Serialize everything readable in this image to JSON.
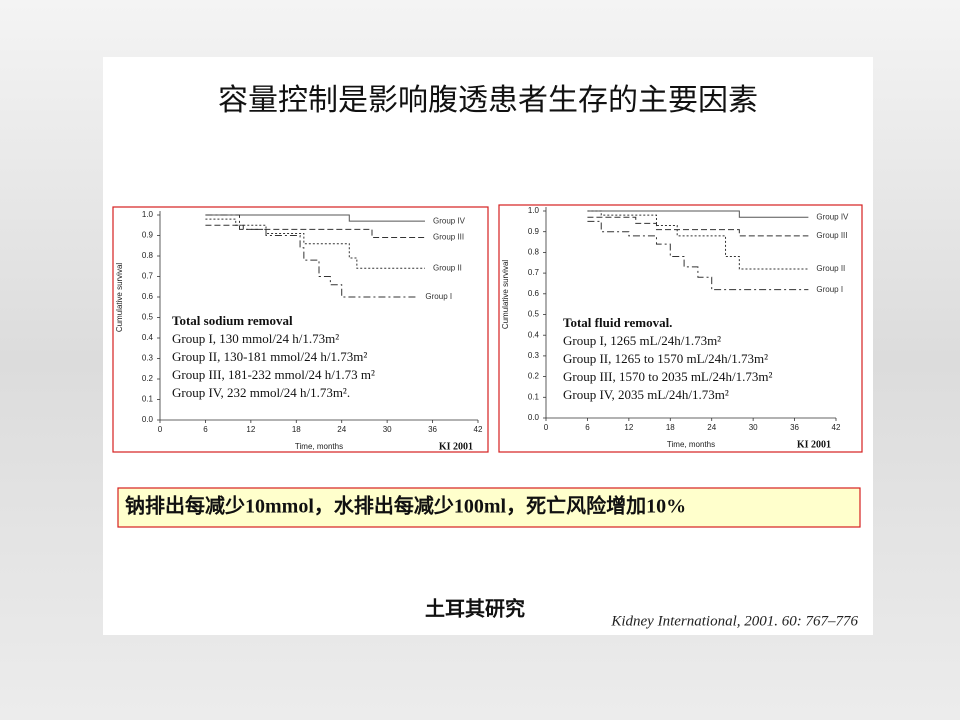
{
  "slide_title": "容量控制是影响腹透患者生存的主要因素",
  "chart_data": [
    {
      "type": "step",
      "ylabel": "Cumulative survival",
      "xlabel": "Time, months",
      "source_tag": "KI 2001",
      "xlim": [
        0,
        42
      ],
      "xticks": [
        0,
        6,
        12,
        18,
        24,
        30,
        36,
        42
      ],
      "ylim": [
        0,
        1
      ],
      "yticks": [
        {
          "value": 0,
          "label": "0.0"
        },
        {
          "value": 0.1,
          "label": "0.1"
        },
        {
          "value": 0.2,
          "label": "0.2"
        },
        {
          "value": 0.3,
          "label": "0.3"
        },
        {
          "value": 0.4,
          "label": "0.4"
        },
        {
          "value": 0.5,
          "label": "0.5"
        },
        {
          "value": 0.6,
          "label": "0.6"
        },
        {
          "value": 0.7,
          "label": "0.7"
        },
        {
          "value": 0.8,
          "label": "0.8"
        },
        {
          "value": 0.9,
          "label": "0.9"
        },
        {
          "value": 1,
          "label": "1.0"
        }
      ],
      "series": [
        {
          "name": "Group IV",
          "color": "#555555",
          "dash": "solid",
          "x": [
            6,
            25,
            35
          ],
          "values": [
            1.0,
            0.97,
            0.97
          ]
        },
        {
          "name": "Group III",
          "color": "#333333",
          "dash": "dashed",
          "x": [
            6,
            11,
            13,
            28,
            35
          ],
          "values": [
            0.95,
            0.93,
            0.93,
            0.89,
            0.89
          ]
        },
        {
          "name": "Group II",
          "color": "#333333",
          "dash": "dotted",
          "x": [
            6,
            10,
            14,
            19,
            25,
            26,
            35
          ],
          "values": [
            0.98,
            0.95,
            0.91,
            0.86,
            0.79,
            0.74,
            0.74
          ]
        },
        {
          "name": "Group I",
          "color": "#333333",
          "dash": "dash-dot",
          "x": [
            6,
            10.5,
            14,
            18.5,
            19,
            21,
            22.5,
            24,
            34
          ],
          "values": [
            1.0,
            0.93,
            0.9,
            0.84,
            0.78,
            0.7,
            0.66,
            0.6,
            0.6
          ]
        }
      ],
      "annotation": {
        "title": "Total sodium removal",
        "lines": [
          "Group I, 130 mmol/24 h/1.73m²",
          "Group II, 130-181 mmol/24 h/1.73m²",
          "Group III, 181-232 mmol/24 h/1.73 m²",
          "Group IV, 232 mmol/24 h/1.73m²."
        ]
      }
    },
    {
      "type": "step",
      "ylabel": "Cumulative survival",
      "xlabel": "Time, months",
      "source_tag": "KI 2001",
      "xlim": [
        0,
        42
      ],
      "xticks": [
        0,
        6,
        12,
        18,
        24,
        30,
        36,
        42
      ],
      "ylim": [
        0,
        1
      ],
      "yticks": [
        {
          "value": 0,
          "label": "0.0"
        },
        {
          "value": 0.1,
          "label": "0.1"
        },
        {
          "value": 0.2,
          "label": "0.2"
        },
        {
          "value": 0.3,
          "label": "0.3"
        },
        {
          "value": 0.4,
          "label": "0.4"
        },
        {
          "value": 0.5,
          "label": "0.5"
        },
        {
          "value": 0.6,
          "label": "0.6"
        },
        {
          "value": 0.7,
          "label": "0.7"
        },
        {
          "value": 0.8,
          "label": "0.8"
        },
        {
          "value": 0.9,
          "label": "0.9"
        },
        {
          "value": 1,
          "label": "1.0"
        }
      ],
      "series": [
        {
          "name": "Group IV",
          "color": "#555555",
          "dash": "solid",
          "x": [
            6,
            28,
            38
          ],
          "values": [
            1.0,
            0.97,
            0.97
          ]
        },
        {
          "name": "Group III",
          "color": "#333333",
          "dash": "dashed",
          "x": [
            6,
            13,
            16,
            28,
            38
          ],
          "values": [
            0.97,
            0.94,
            0.91,
            0.88,
            0.88
          ]
        },
        {
          "name": "Group II",
          "color": "#333333",
          "dash": "dotted",
          "x": [
            6,
            8,
            16,
            19,
            26,
            28,
            38
          ],
          "values": [
            1.0,
            0.98,
            0.93,
            0.88,
            0.78,
            0.72,
            0.72
          ]
        },
        {
          "name": "Group I",
          "color": "#333333",
          "dash": "dash-dot",
          "x": [
            6,
            8,
            12,
            16,
            18,
            20,
            22,
            24,
            38
          ],
          "values": [
            0.95,
            0.9,
            0.88,
            0.84,
            0.78,
            0.73,
            0.68,
            0.62,
            0.62
          ]
        }
      ],
      "annotation": {
        "title": "Total fluid removal.",
        "lines": [
          "Group I, 1265 mL/24h/1.73m²",
          "Group II, 1265 to 1570 mL/24h/1.73m²",
          "Group III, 1570 to 2035 mL/24h/1.73m²",
          "Group IV, 2035 mL/24h/1.73m²"
        ]
      }
    }
  ],
  "highlight": "钠排出每减少10mmol，水排出每减少100ml，死亡风险增加10%",
  "study": "土耳其研究",
  "citation": "Kidney International, 2001. 60: 767–776"
}
